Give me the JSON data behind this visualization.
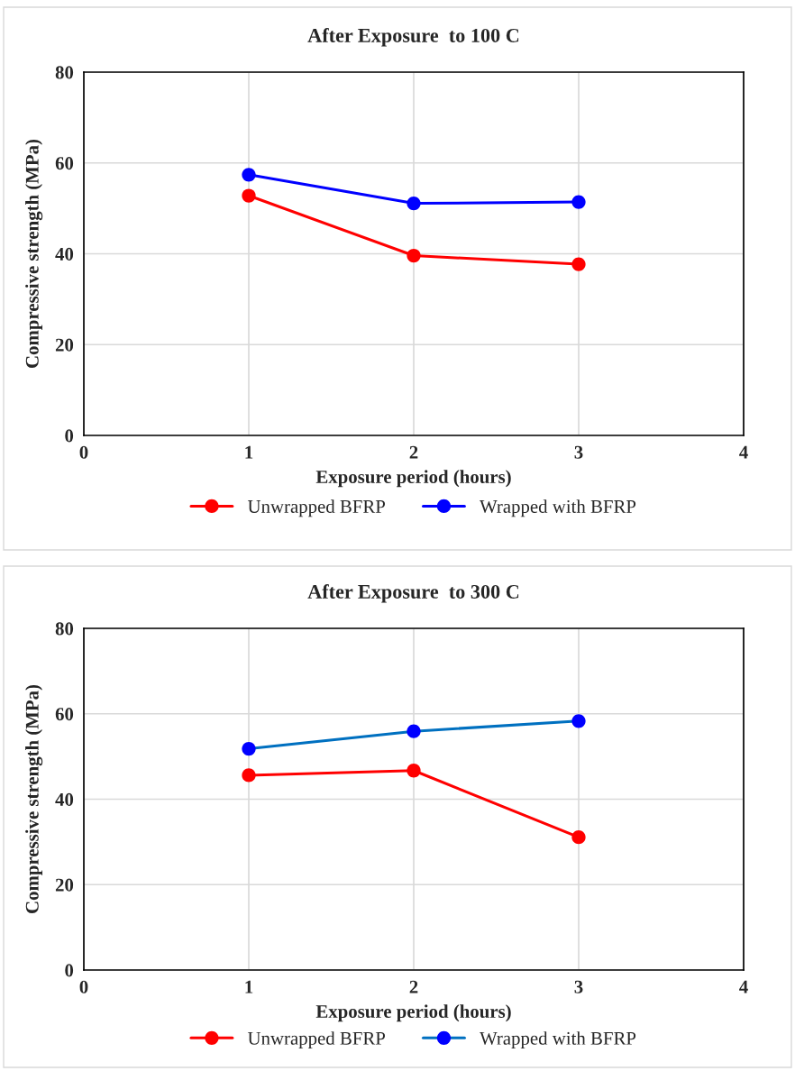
{
  "chart_data": [
    {
      "type": "line",
      "title": "After Exposure  to 100 C",
      "xlabel": "Exposure period (hours)",
      "ylabel": "Compressive strength (MPa)",
      "x": [
        1,
        2,
        3
      ],
      "xlim": [
        0,
        4
      ],
      "xticks": [
        0,
        1,
        2,
        3,
        4
      ],
      "ylim": [
        0,
        80
      ],
      "yticks": [
        0,
        20,
        40,
        60,
        80
      ],
      "grid": true,
      "legend": "bottom",
      "marker": "circle",
      "line_style": "solid",
      "series": [
        {
          "name": "Unwrapped BFRP",
          "color": "#ff0000",
          "values": [
            52.8,
            39.6,
            37.7
          ]
        },
        {
          "name": "Wrapped with BFRP",
          "color": "#0000ff",
          "values": [
            57.4,
            51.1,
            51.4
          ]
        }
      ]
    },
    {
      "type": "line",
      "title": "After Exposure  to 300 C",
      "xlabel": "Exposure period (hours)",
      "ylabel": "Compressive strength (MPa)",
      "x": [
        1,
        2,
        3
      ],
      "xlim": [
        0,
        4
      ],
      "xticks": [
        0,
        1,
        2,
        3,
        4
      ],
      "ylim": [
        0,
        80
      ],
      "yticks": [
        0,
        20,
        40,
        60,
        80
      ],
      "grid": true,
      "legend": "bottom",
      "marker": "circle",
      "line_style": "solid",
      "series": [
        {
          "name": "Unwrapped BFRP",
          "color": "#ff0000",
          "values": [
            45.6,
            46.7,
            31.1
          ]
        },
        {
          "name": "Wrapped with BFRP",
          "color": "#0070c0",
          "values": [
            51.8,
            55.9,
            58.3
          ]
        }
      ]
    }
  ]
}
